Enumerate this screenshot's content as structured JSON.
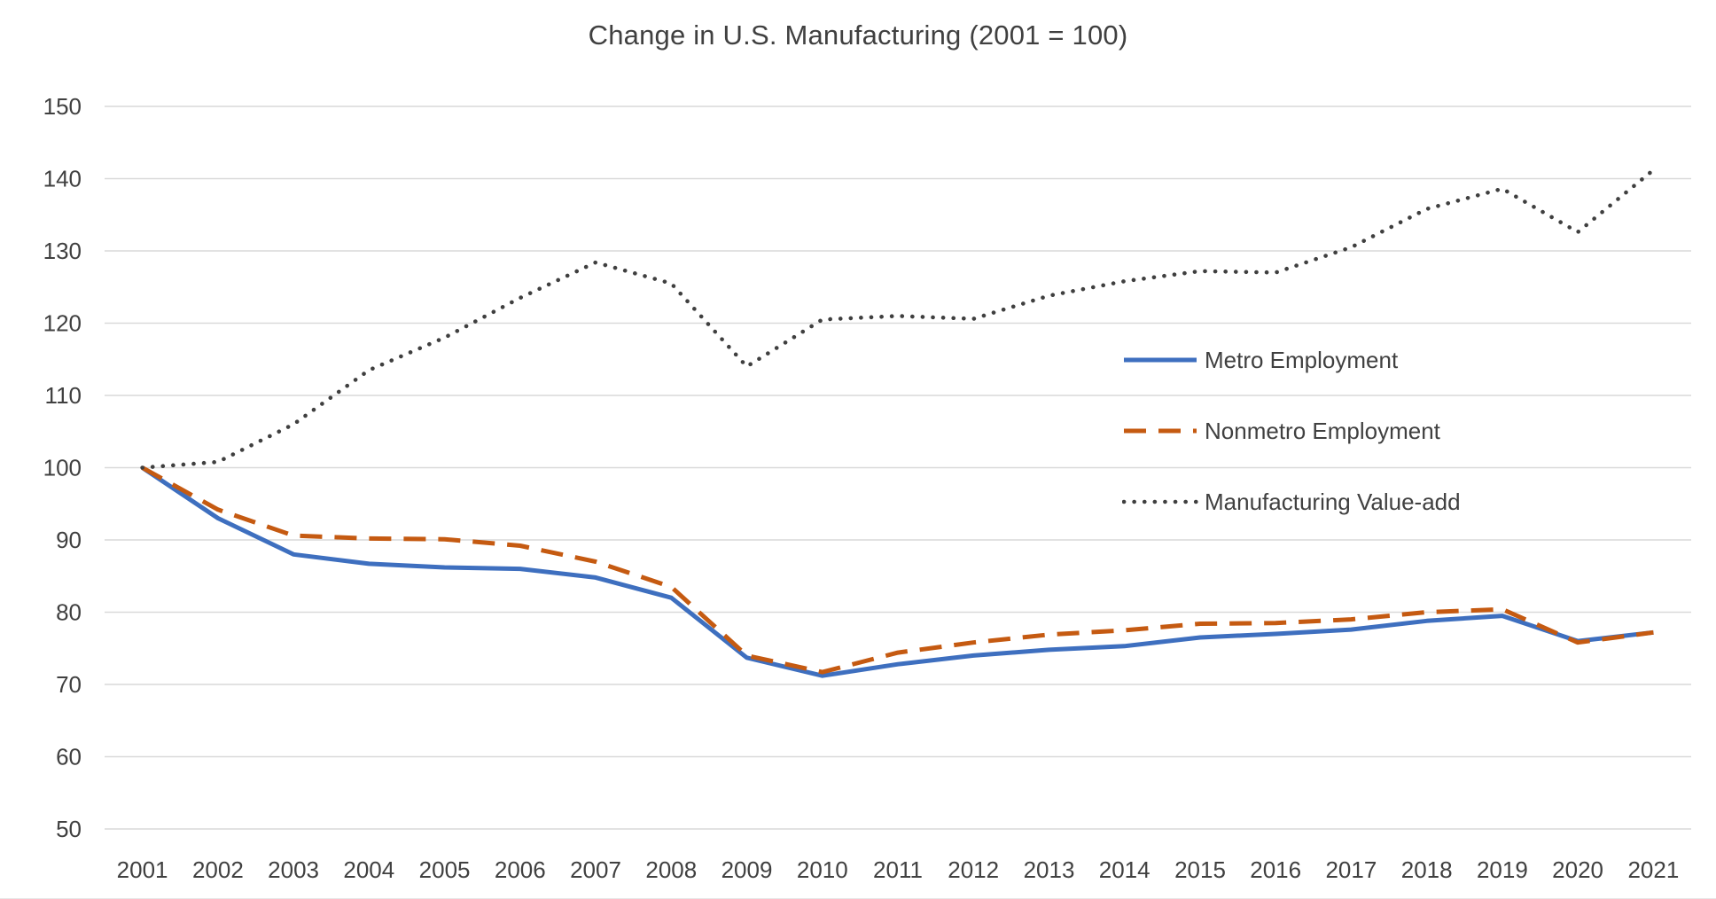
{
  "chart_data": {
    "type": "line",
    "title": "Change in U.S. Manufacturing (2001 = 100)",
    "categories": [
      "2001",
      "2002",
      "2003",
      "2004",
      "2005",
      "2006",
      "2007",
      "2008",
      "2009",
      "2010",
      "2011",
      "2012",
      "2013",
      "2014",
      "2015",
      "2016",
      "2017",
      "2018",
      "2019",
      "2020",
      "2021"
    ],
    "series": [
      {
        "name": "Metro Employment",
        "style": "solid",
        "color": "#3E6FBF",
        "values": [
          100,
          93,
          88,
          86.7,
          86.2,
          86,
          84.8,
          82,
          73.7,
          71.2,
          72.8,
          74,
          74.8,
          75.3,
          76.5,
          77,
          77.6,
          78.8,
          79.5,
          76,
          77.2
        ]
      },
      {
        "name": "Nonmetro Employment",
        "style": "dashed",
        "color": "#C55A11",
        "values": [
          100,
          94.2,
          90.6,
          90.2,
          90.1,
          89.2,
          87,
          83.5,
          74,
          71.7,
          74.4,
          75.8,
          76.9,
          77.5,
          78.4,
          78.5,
          79,
          80,
          80.4,
          75.8,
          77.2
        ]
      },
      {
        "name": "Manufacturing Value-add",
        "style": "dotted",
        "color": "#3F3F3F",
        "values": [
          100,
          100.8,
          106,
          113.5,
          118,
          123.5,
          128.4,
          125.5,
          114,
          120.5,
          121,
          120.6,
          123.8,
          125.8,
          127.2,
          127,
          130.5,
          135.8,
          138.6,
          132.6,
          141.2
        ]
      }
    ],
    "ylim": [
      50,
      150
    ],
    "ytick_step": 10,
    "grid": true,
    "legend_position": "inside-right",
    "gridline_color": "#D9D9D9",
    "text_color": "#404040"
  }
}
